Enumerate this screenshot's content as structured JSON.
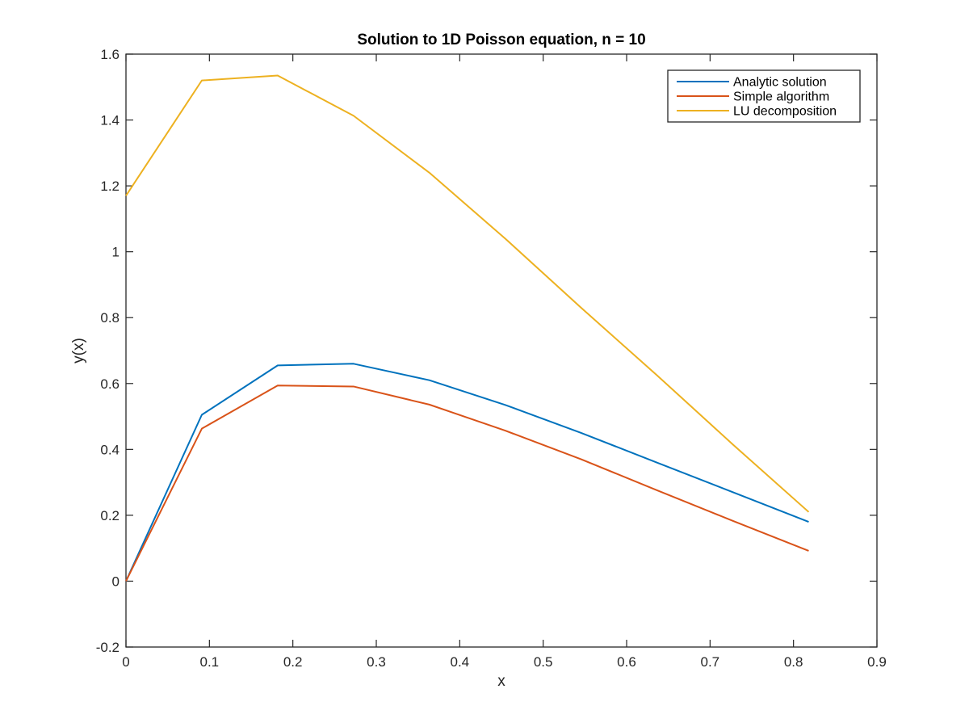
{
  "chart_data": {
    "type": "line",
    "title": "Solution to 1D Poisson equation, n = 10",
    "xlabel": "x",
    "ylabel": "y(x)",
    "xlim": [
      0,
      0.9
    ],
    "ylim": [
      -0.2,
      1.6
    ],
    "xticks": [
      "0",
      "0.1",
      "0.2",
      "0.3",
      "0.4",
      "0.5",
      "0.6",
      "0.7",
      "0.8",
      "0.9"
    ],
    "yticks": [
      "-0.2",
      "0",
      "0.2",
      "0.4",
      "0.6",
      "0.8",
      "1",
      "1.2",
      "1.4",
      "1.6"
    ],
    "xtick_values": [
      0,
      0.1,
      0.2,
      0.3,
      0.4,
      0.5,
      0.6,
      0.7,
      0.8,
      0.9
    ],
    "ytick_values": [
      -0.2,
      0,
      0.2,
      0.4,
      0.6,
      0.8,
      1.0,
      1.2,
      1.4,
      1.6
    ],
    "grid": false,
    "legend_position": "top-right",
    "series": [
      {
        "name": "Analytic solution",
        "color": "#0072BD",
        "x": [
          0,
          0.0909,
          0.1818,
          0.2727,
          0.3636,
          0.4545,
          0.5455,
          0.6364,
          0.7273,
          0.8182
        ],
        "y": [
          0,
          0.505,
          0.655,
          0.66,
          0.61,
          0.535,
          0.45,
          0.36,
          0.27,
          0.18
        ]
      },
      {
        "name": "Simple algorithm",
        "color": "#D95319",
        "x": [
          0,
          0.0909,
          0.1818,
          0.2727,
          0.3636,
          0.4545,
          0.5455,
          0.6364,
          0.7273,
          0.8182
        ],
        "y": [
          0,
          0.463,
          0.594,
          0.591,
          0.536,
          0.457,
          0.37,
          0.276,
          0.183,
          0.092
        ]
      },
      {
        "name": "LU decomposition",
        "color": "#EDB120",
        "x": [
          0,
          0.0909,
          0.1818,
          0.2727,
          0.3636,
          0.4545,
          0.5455,
          0.6364,
          0.7273,
          0.8182
        ],
        "y": [
          1.17,
          1.52,
          1.535,
          1.413,
          1.24,
          1.04,
          0.83,
          0.625,
          0.415,
          0.21
        ]
      }
    ]
  }
}
